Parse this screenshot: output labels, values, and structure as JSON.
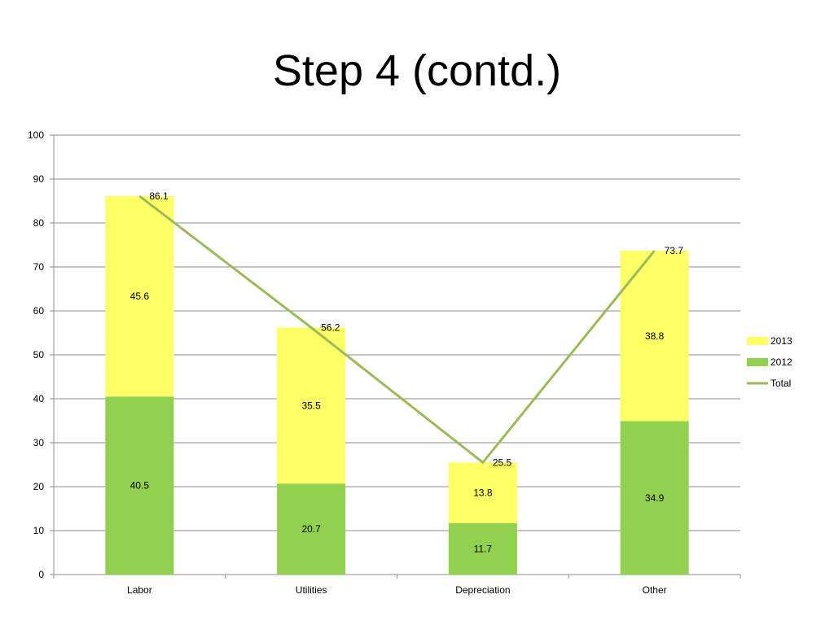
{
  "slide": {
    "title": "Step 4 (contd.)"
  },
  "chart_data": {
    "type": "bar",
    "stacked": true,
    "title": "",
    "categories": [
      "Labor",
      "Utilities",
      "Depreciation",
      "Other"
    ],
    "series": [
      {
        "name": "2012",
        "type": "bar",
        "color": "#92d050",
        "values": [
          40.5,
          20.7,
          11.7,
          34.9
        ]
      },
      {
        "name": "2013",
        "type": "bar",
        "color": "#ffff66",
        "values": [
          45.6,
          35.5,
          13.8,
          38.8
        ]
      },
      {
        "name": "Total",
        "type": "line",
        "color": "#9bbb59",
        "values": [
          86.1,
          56.2,
          25.5,
          73.7
        ]
      }
    ],
    "legend": {
      "placement": "right",
      "order": [
        "2013",
        "2012",
        "Total"
      ]
    },
    "ylim": [
      0,
      100
    ],
    "yticks": [
      0,
      10,
      20,
      30,
      40,
      50,
      60,
      70,
      80,
      90,
      100
    ],
    "grid": true,
    "xlabel": "",
    "ylabel": ""
  }
}
